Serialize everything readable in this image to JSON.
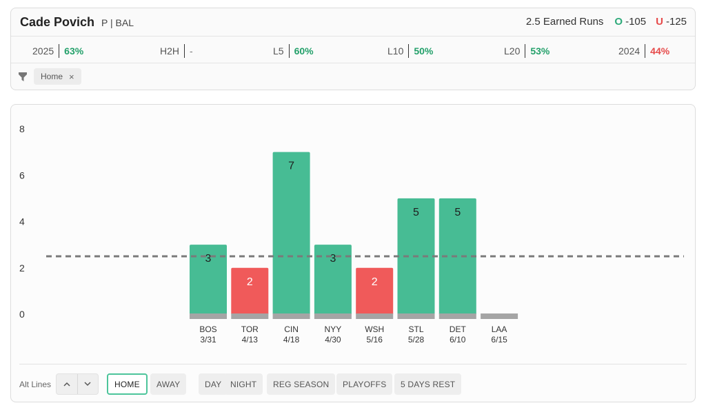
{
  "player": {
    "name": "Cade Povich",
    "position": "P",
    "team": "BAL"
  },
  "market": {
    "label": "2.5 Earned Runs",
    "over_letter": "O",
    "over_odds": "-105",
    "under_letter": "U",
    "under_odds": "-125"
  },
  "stats": [
    {
      "label": "2025",
      "value": "63%",
      "tone": "green"
    },
    {
      "label": "H2H",
      "value": "-",
      "tone": "none"
    },
    {
      "label": "L5",
      "value": "60%",
      "tone": "green"
    },
    {
      "label": "L10",
      "value": "50%",
      "tone": "green"
    },
    {
      "label": "L20",
      "value": "53%",
      "tone": "green"
    },
    {
      "label": "2024",
      "value": "44%",
      "tone": "red"
    }
  ],
  "filter_chip": {
    "label": "Home",
    "remove": "×"
  },
  "colors": {
    "over": "#47bc94",
    "under": "#f05a5a",
    "base": "#a5a5a5",
    "line": "#7a7a7a"
  },
  "chart_data": {
    "type": "bar",
    "title": "",
    "xlabel": "",
    "ylabel": "",
    "ylim": [
      0,
      8
    ],
    "yticks": [
      0,
      2,
      4,
      6,
      8
    ],
    "threshold": 2.5,
    "categories": [
      {
        "team": "BOS",
        "date": "3/31"
      },
      {
        "team": "TOR",
        "date": "4/13"
      },
      {
        "team": "CIN",
        "date": "4/18"
      },
      {
        "team": "NYY",
        "date": "4/30"
      },
      {
        "team": "WSH",
        "date": "5/16"
      },
      {
        "team": "STL",
        "date": "5/28"
      },
      {
        "team": "DET",
        "date": "6/10"
      },
      {
        "team": "LAA",
        "date": "6/15"
      }
    ],
    "values": [
      3,
      2,
      7,
      3,
      2,
      5,
      5,
      0
    ],
    "value_labels": [
      "3",
      "2",
      "7",
      "3",
      "2",
      "5",
      "5",
      ""
    ]
  },
  "bottom": {
    "alt_lines_label": "Alt Lines",
    "up_icon": "chevron-up-icon",
    "down_icon": "chevron-down-icon",
    "buttons": [
      {
        "label": "HOME",
        "active": true
      },
      {
        "label": "AWAY",
        "active": false
      },
      {
        "label": "DAY",
        "active": false
      },
      {
        "label": "NIGHT",
        "active": false
      },
      {
        "label": "REG SEASON",
        "active": false
      },
      {
        "label": "PLAYOFFS",
        "active": false
      },
      {
        "label": "5 DAYS REST",
        "active": false
      }
    ]
  }
}
